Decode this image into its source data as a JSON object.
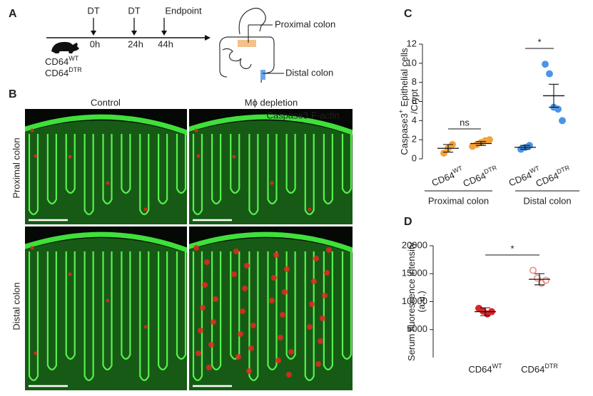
{
  "panels": [
    "A",
    "B",
    "C",
    "D"
  ],
  "timeline": {
    "events": [
      "DT",
      "DT",
      "Endpoint"
    ],
    "times": [
      "0h",
      "24h",
      "44h"
    ],
    "mice": [
      [
        "CD64",
        "WT"
      ],
      [
        "CD64",
        "DTR"
      ]
    ]
  },
  "colon_diagram": {
    "proximal": "Proximal colon",
    "distal": "Distal colon"
  },
  "micrographs": {
    "columns": [
      "Control",
      "Mϕ depletion"
    ],
    "rows": [
      "Proximal colon",
      "Distal colon"
    ],
    "stain_labels": [
      "Caspase3",
      "F-actin"
    ]
  },
  "chart_data": [
    {
      "type": "dot",
      "ylabel": [
        [
          "Caspase3",
          "+",
          "Epithelial cells"
        ],
        [
          "/Crypt"
        ]
      ],
      "categories": [
        [
          "CD64",
          "WT"
        ],
        [
          "CD64",
          "DTR"
        ],
        [
          "CD64",
          "WT"
        ],
        [
          "CD64",
          "DTR"
        ]
      ],
      "group_labels": [
        "Proximal colon",
        "Distal colon"
      ],
      "points": [
        [
          0.6,
          1.1,
          1.5
        ],
        [
          1.3,
          1.5,
          1.7,
          1.9,
          2.0
        ],
        [
          1.0,
          1.2,
          1.4
        ],
        [
          9.9,
          8.9,
          5.4,
          5.2,
          4.0
        ]
      ],
      "means": [
        1.1,
        1.6,
        1.2,
        6.6
      ],
      "errors": [
        0.4,
        0.2,
        0.2,
        1.2
      ],
      "colors": [
        "#f4a23a",
        "#f4a23a",
        "#4b95e6",
        "#4b95e6"
      ],
      "open_markers": [
        false,
        false,
        false,
        false
      ],
      "annotations": [
        "ns",
        "*"
      ],
      "ylim": [
        0,
        12
      ],
      "yticks": [
        0,
        2,
        4,
        6,
        8,
        10,
        12
      ]
    },
    {
      "type": "dot",
      "ylabel": [
        [
          "Serum fluorescence intensity"
        ],
        [
          "(a.u.)"
        ]
      ],
      "categories": [
        [
          "CD64",
          "WT"
        ],
        [
          "CD64",
          "DTR"
        ]
      ],
      "points": [
        [
          8800,
          8300,
          7800,
          8200
        ],
        [
          15600,
          14200,
          13300,
          13800
        ]
      ],
      "means": [
        8200,
        14000
      ],
      "errors": [
        700,
        1000
      ],
      "colors": [
        "#d8232a",
        "#ea8a80"
      ],
      "open_markers": [
        false,
        true
      ],
      "annotations": [
        "*"
      ],
      "ylim": [
        0,
        20000
      ],
      "yticks": [
        5000,
        10000,
        15000,
        20000
      ]
    }
  ]
}
